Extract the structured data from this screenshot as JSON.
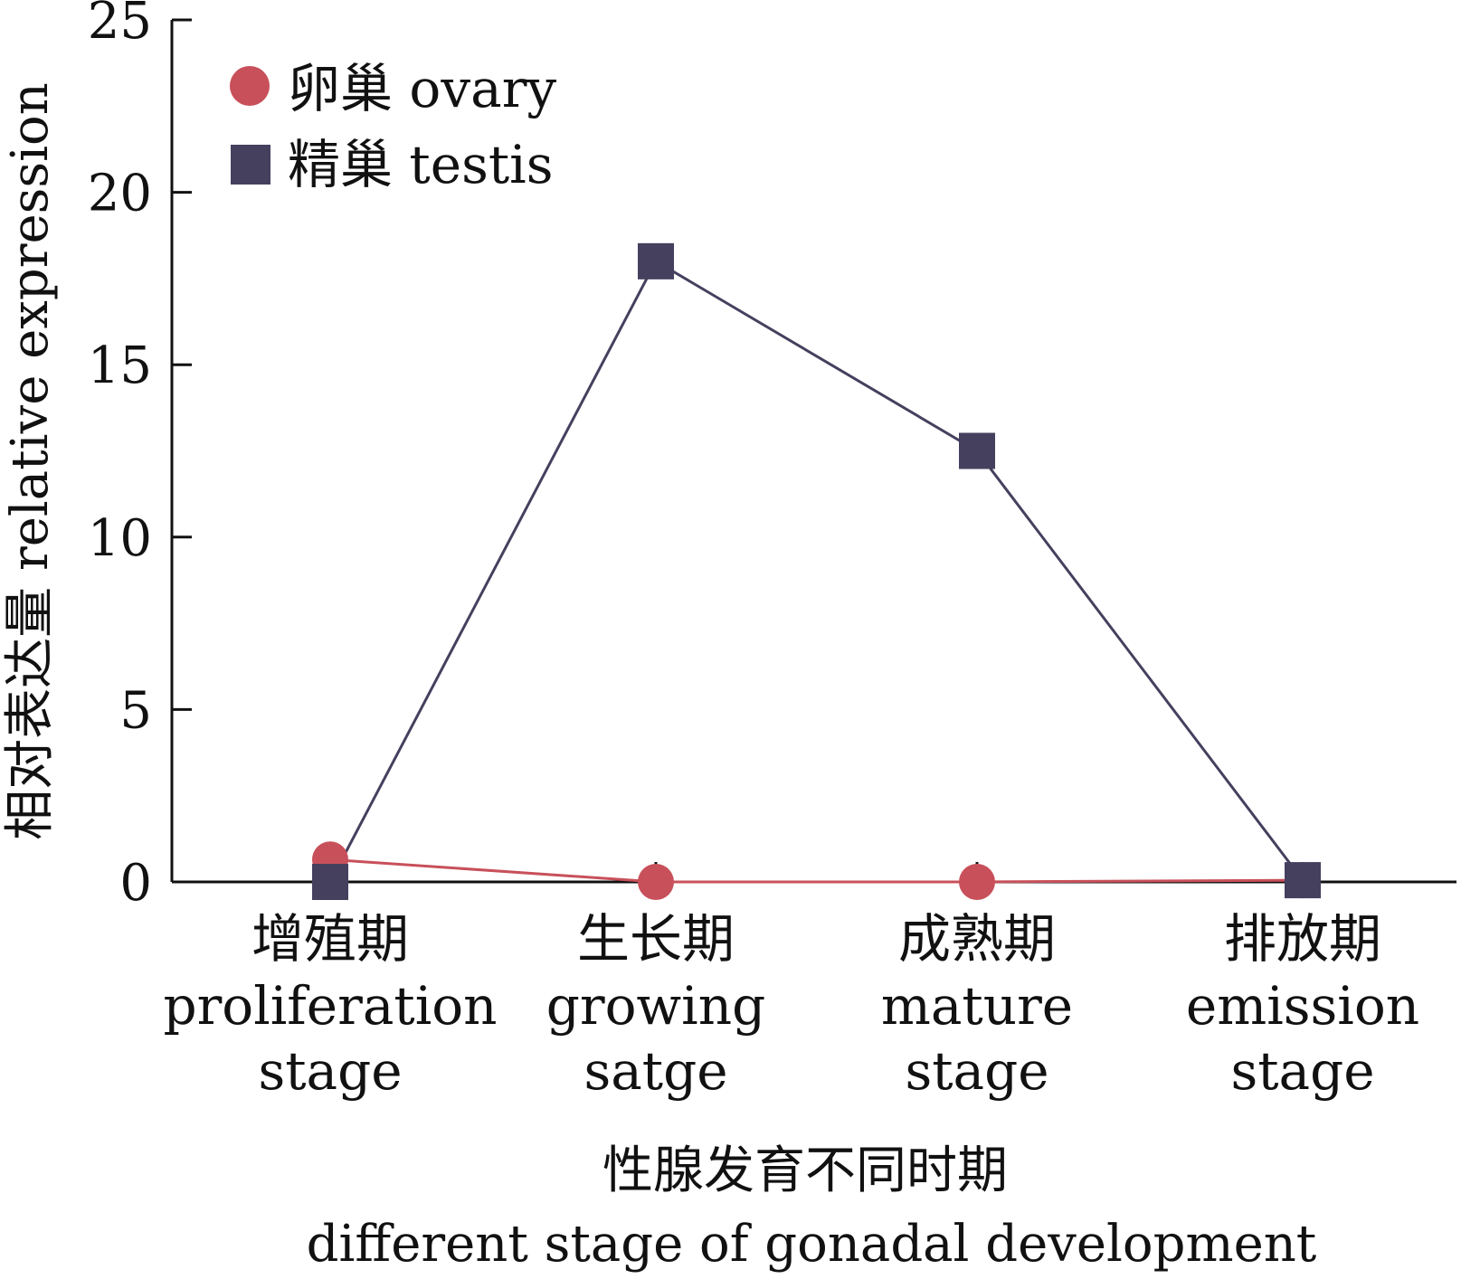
{
  "chart_data": {
    "type": "line",
    "categories": [
      {
        "zh": "增殖期",
        "en": [
          "proliferation",
          "stage"
        ]
      },
      {
        "zh": "生长期",
        "en": [
          "growing",
          "satge"
        ]
      },
      {
        "zh": "成熟期",
        "en": [
          "mature",
          "stage"
        ]
      },
      {
        "zh": "排放期",
        "en": [
          "emission",
          "stage"
        ]
      }
    ],
    "series": [
      {
        "name": "卵巢 ovary",
        "marker": "circle",
        "color": "#c8505a",
        "values": [
          0.65,
          0.0,
          0.0,
          0.05
        ]
      },
      {
        "name": "精巢 testis",
        "marker": "square",
        "color": "#45405e",
        "values": [
          0.0,
          18.0,
          12.5,
          0.05
        ]
      }
    ],
    "ylabel": "相对表达量 relative expression",
    "xlabel_zh": "性腺发育不同时期",
    "xlabel_en": "different stage of gonadal development",
    "ylim": [
      0,
      25
    ],
    "yticks": [
      0,
      5,
      10,
      15,
      20,
      25
    ],
    "legend_position": "top-left",
    "grid": false
  }
}
